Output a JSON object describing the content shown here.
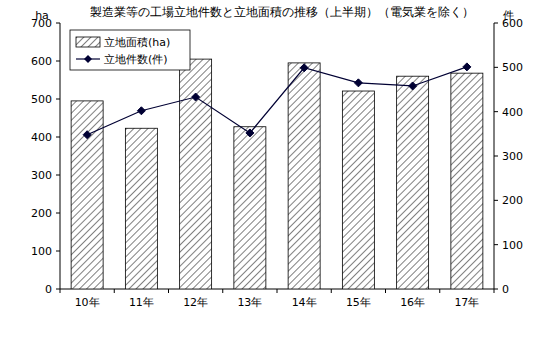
{
  "chart_data": {
    "type": "bar",
    "title": "製造業等の工場立地件数と立地面積の推移（上半期）（電気業を除く）",
    "y_label": "ha",
    "y2_label": "件",
    "categories": [
      "10年",
      "11年",
      "12年",
      "13年",
      "14年",
      "15年",
      "16年",
      "17年"
    ],
    "series": [
      {
        "name": "立地面積(ha)",
        "type": "bar",
        "color": "#808080",
        "values": [
          495,
          423,
          605,
          427,
          595,
          521,
          560,
          568
        ]
      },
      {
        "name": "立地件数(件)",
        "type": "line",
        "axis": "y2",
        "color": "#000033",
        "marker": "diamond",
        "values": [
          348,
          402,
          433,
          352,
          499,
          465,
          458,
          501
        ]
      }
    ],
    "ylim": [
      0,
      700
    ],
    "yticks": [
      0,
      100,
      200,
      300,
      400,
      500,
      600,
      700
    ],
    "y2lim": [
      0,
      600
    ],
    "y2ticks": [
      0,
      100,
      200,
      300,
      400,
      500,
      600
    ],
    "legend": "upper-left",
    "grid": false
  }
}
